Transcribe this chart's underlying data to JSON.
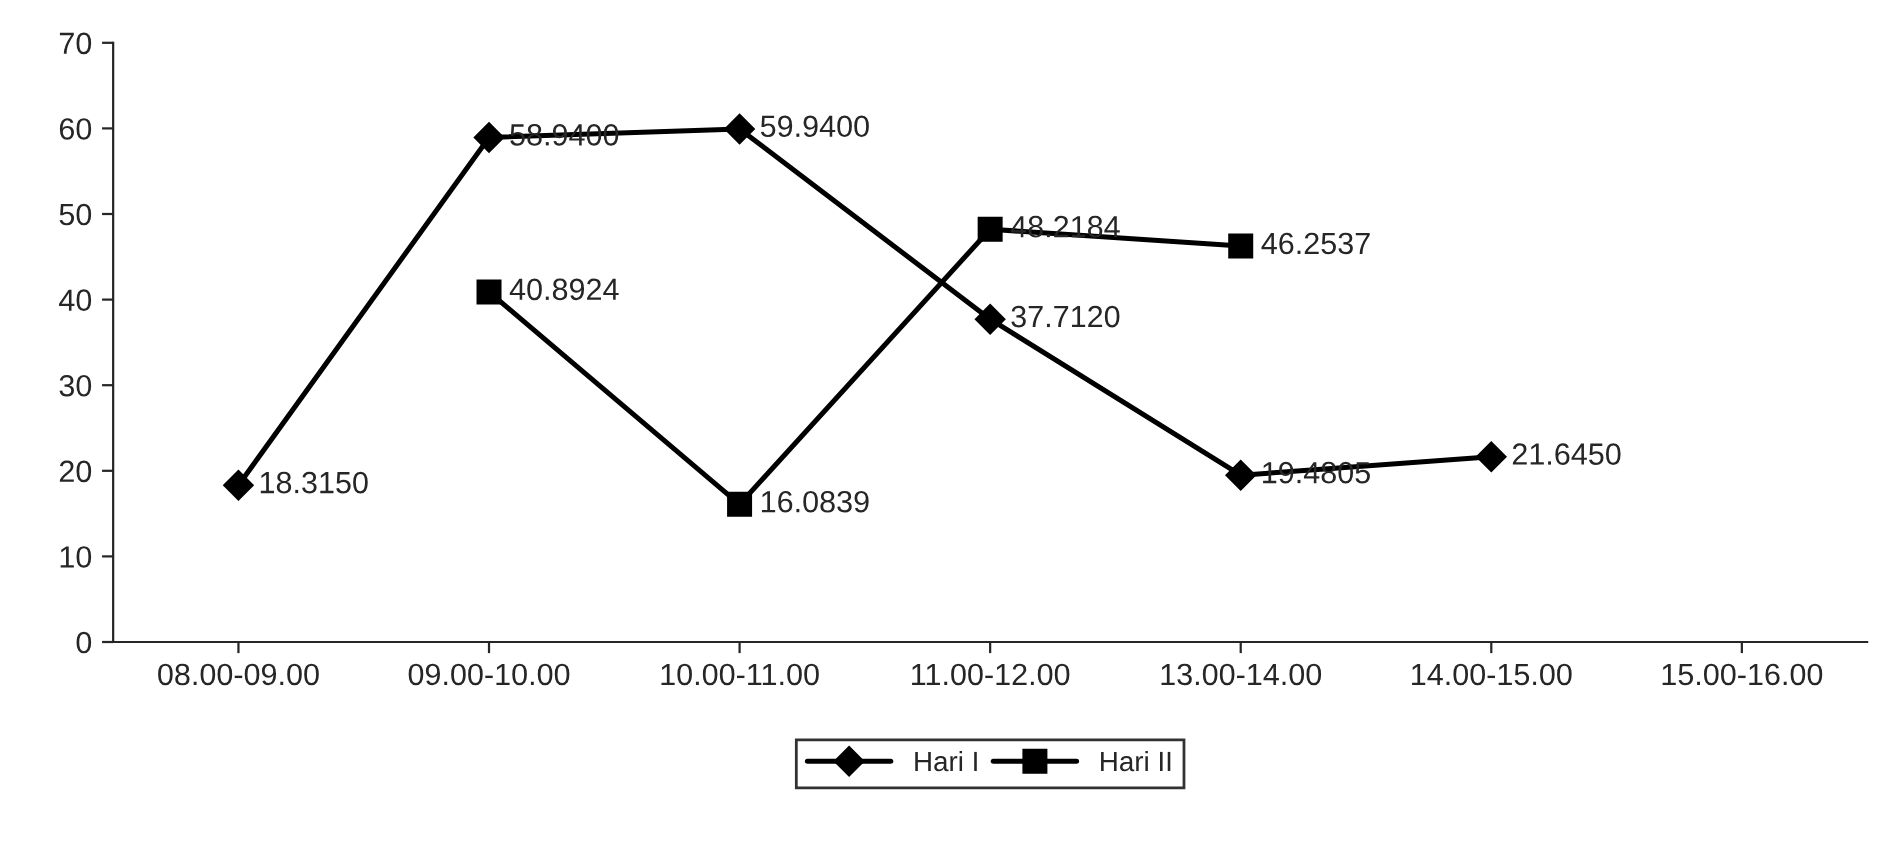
{
  "chart_data": {
    "type": "line",
    "categories": [
      "08.00-09.00",
      "09.00-10.00",
      "10.00-11.00",
      "11.00-12.00",
      "13.00-14.00",
      "14.00-15.00",
      "15.00-16.00"
    ],
    "series": [
      {
        "name": "Hari I",
        "color": "#000000",
        "marker": "diamond",
        "values": [
          18.315,
          58.94,
          59.94,
          37.712,
          19.4805,
          21.645,
          null
        ],
        "value_labels": [
          "18.3150",
          "58.9400",
          "59.9400",
          "37.7120",
          "19.4805",
          "21.6450",
          null
        ]
      },
      {
        "name": "Hari II",
        "color": "#000000",
        "marker": "square",
        "values": [
          null,
          40.8924,
          16.0839,
          48.2184,
          46.2537,
          null,
          null
        ],
        "value_labels": [
          null,
          "40.8924",
          "16.0839",
          "48.2184",
          "46.2537",
          null,
          null
        ]
      }
    ],
    "ylim": [
      0,
      70
    ],
    "yticks": [
      0,
      10,
      20,
      30,
      40,
      50,
      60,
      70
    ],
    "grid": false,
    "legend": "bottom",
    "line_style": "solid"
  }
}
